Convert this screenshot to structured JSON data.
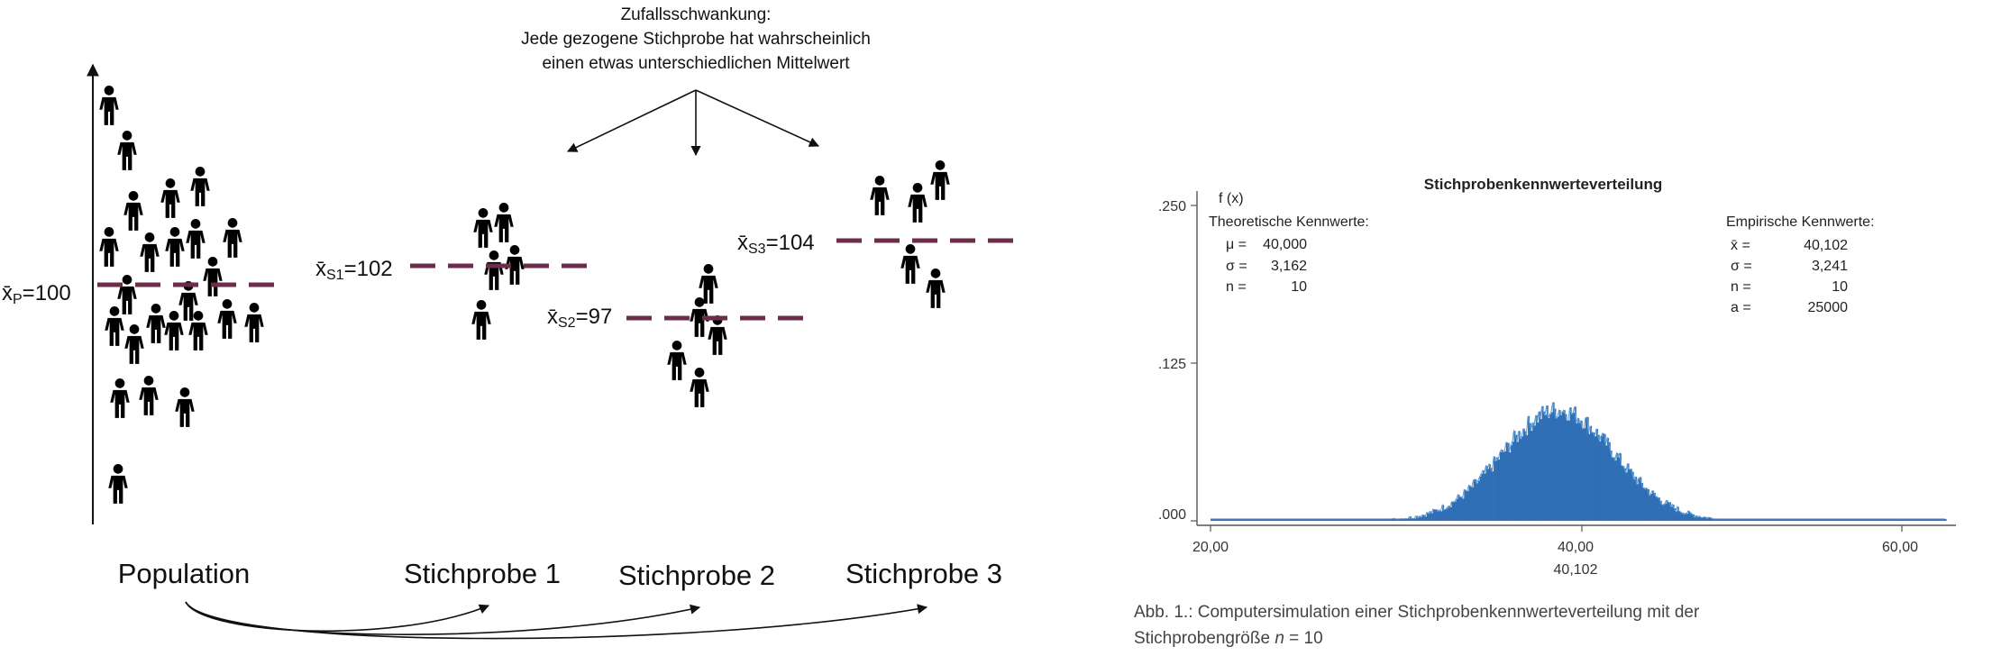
{
  "left_diagram": {
    "annotation": {
      "line1": "Zufallsschwankung:",
      "line2": "Jede gezogene Stichprobe hat wahrscheinlich",
      "line3": "einen etwas unterschiedlichen Mittelwert"
    },
    "groups": {
      "population": "Population",
      "sample1": "Stichprobe 1",
      "sample2": "Stichprobe 2",
      "sample3": "Stichprobe 3"
    },
    "means": {
      "population": {
        "symbol": "x̄",
        "sub": "P",
        "value": "=100"
      },
      "sample1": {
        "symbol": "x̄",
        "sub": "S1",
        "value": "=102"
      },
      "sample2": {
        "symbol": "x̄",
        "sub": "S2",
        "value": "=97"
      },
      "sample3": {
        "symbol": "x̄",
        "sub": "S3",
        "value": "=104"
      }
    },
    "colors": {
      "mean_line": "#6b2d4a",
      "figure": "#000000"
    }
  },
  "chart_data": {
    "type": "histogram",
    "title": "Stichprobenkennwerteverteilung",
    "ylabel": "f (x)",
    "x_ticks": [
      "20,00",
      "40,00",
      "60,00"
    ],
    "x_extra_tick": "40,102",
    "y_ticks": [
      ".250",
      ".125",
      ".000"
    ],
    "xlim": [
      20,
      60
    ],
    "ylim": [
      0,
      0.25
    ],
    "distribution": {
      "mean": 40.102,
      "sd": 3.241,
      "peak_density": 0.088,
      "n_draws": 25000
    },
    "theoretical": {
      "heading": "Theoretische Kennwerte:",
      "rows": [
        {
          "label": "μ =",
          "value": "40,000"
        },
        {
          "label": "σ =",
          "value": "3,162"
        },
        {
          "label": "n =",
          "value": "10"
        }
      ]
    },
    "empirical": {
      "heading": "Empirische Kennwerte:",
      "rows": [
        {
          "label": "x̄ =",
          "value": "40,102"
        },
        {
          "label": "σ =",
          "value": "3,241"
        },
        {
          "label": "n =",
          "value": "10"
        },
        {
          "label": "a =",
          "value": "25000"
        }
      ]
    },
    "colors": {
      "bars": "#2f6fb5",
      "outline": "#5b9bd5"
    }
  },
  "caption": {
    "line1": "Abb. 1.: Computersimulation einer Stichprobenkennwerteverteilung mit der",
    "line2_prefix": "Stichprobengröße ",
    "line2_var": "n",
    "line2_suffix": " = 10"
  }
}
